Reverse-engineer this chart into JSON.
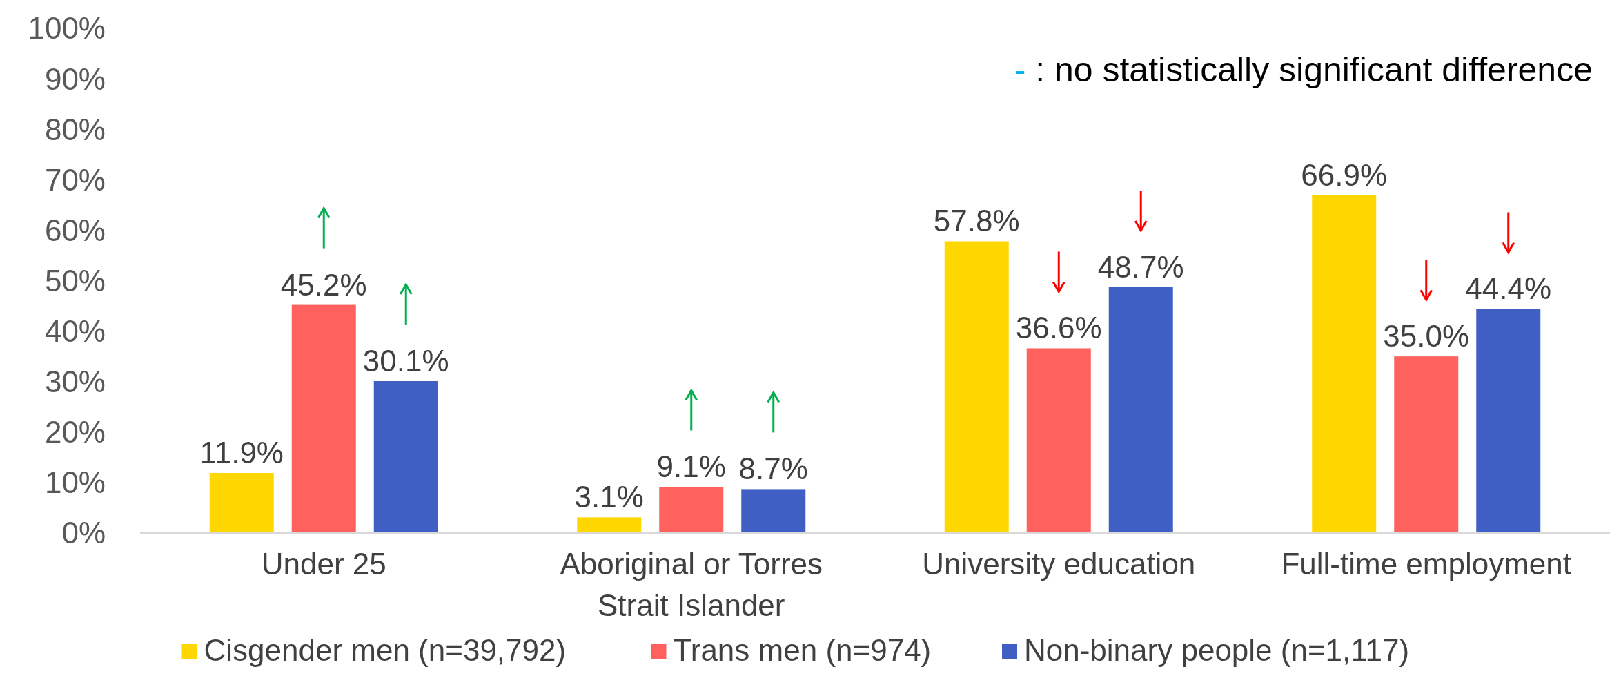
{
  "chart_data": {
    "type": "bar",
    "categories": [
      "Under 25",
      "Aboriginal or Torres Strait Islander",
      "University education",
      "Full-time employment"
    ],
    "series": [
      {
        "name": "Cisgender men (n=39,792)",
        "color": "#ffd700",
        "values": [
          11.9,
          3.1,
          57.8,
          66.9
        ],
        "value_labels": [
          "11.9%",
          "3.1%",
          "57.8%",
          "66.9%"
        ]
      },
      {
        "name": "Trans men (n=974)",
        "color": "#ff625e",
        "values": [
          45.2,
          9.1,
          36.6,
          35.0
        ],
        "value_labels": [
          "45.2%",
          "9.1%",
          "36.6%",
          "35.0%"
        ]
      },
      {
        "name": "Non-binary people (n=1,117)",
        "color": "#3f5fc4",
        "values": [
          30.1,
          8.7,
          48.7,
          44.4
        ],
        "value_labels": [
          "30.1%",
          "8.7%",
          "48.7%",
          "44.4%"
        ]
      }
    ],
    "ylim": [
      0,
      100
    ],
    "yticks": [
      {
        "value": 0,
        "label": "0%"
      },
      {
        "value": 10,
        "label": "10%"
      },
      {
        "value": 20,
        "label": "20%"
      },
      {
        "value": 30,
        "label": "30%"
      },
      {
        "value": 40,
        "label": "40%"
      },
      {
        "value": 50,
        "label": "50%"
      },
      {
        "value": 60,
        "label": "60%"
      },
      {
        "value": 70,
        "label": "70%"
      },
      {
        "value": 80,
        "label": "80%"
      },
      {
        "value": 90,
        "label": "90%"
      },
      {
        "value": 100,
        "label": "100%"
      }
    ],
    "grid": false,
    "legend": "bottom",
    "annotations": [
      "- : no statistically significant difference"
    ]
  }
}
